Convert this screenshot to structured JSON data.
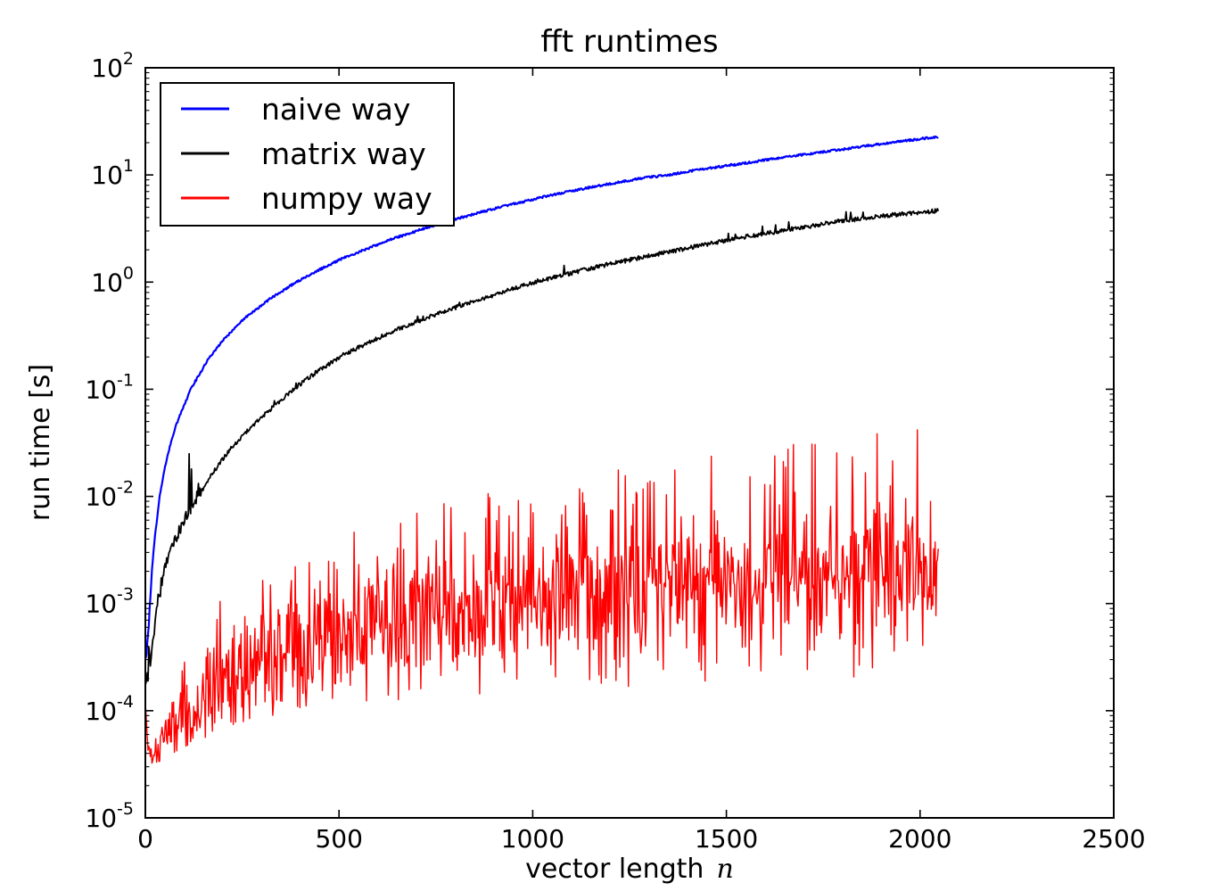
{
  "title": "fft runtimes",
  "chart_data": {
    "type": "line",
    "title": "fft runtimes",
    "xlabel": "vector length",
    "xlabel_math_var": "n",
    "ylabel": "run time [s]",
    "background_color": "#ffffff",
    "axes_edge_color": "#000000",
    "grid": false,
    "x_axis": {
      "scale": "linear",
      "min": 0,
      "max": 2500,
      "tick_labels": [
        "0",
        "500",
        "1000",
        "1500",
        "2000",
        "2500"
      ],
      "tick_values": [
        0,
        500,
        1000,
        1500,
        2000,
        2500
      ]
    },
    "y_axis": {
      "scale": "log",
      "min": 1e-05,
      "max": 100,
      "tick_exponents": [
        2,
        1,
        0,
        -1,
        -2,
        -3,
        -4,
        -5
      ],
      "tick_base": "10",
      "minor_ticks": true
    },
    "legend": {
      "position": "upper left",
      "entries": [
        {
          "label": "naive way",
          "color": "#0000ff"
        },
        {
          "label": "matrix way",
          "color": "#000000"
        },
        {
          "label": "numpy way",
          "color": "#ff0000"
        }
      ]
    },
    "series": [
      {
        "name": "naive way",
        "color": "#0000ff",
        "style": "smooth-line",
        "n_start": 1,
        "n_end": 2048,
        "trend_points": [
          [
            1,
            0.0003
          ],
          [
            8,
            0.0006
          ],
          [
            16,
            0.0019
          ],
          [
            24,
            0.004
          ],
          [
            37,
            0.01
          ],
          [
            48,
            0.017
          ],
          [
            64,
            0.03
          ],
          [
            80,
            0.047
          ],
          [
            117,
            0.1
          ],
          [
            160,
            0.185
          ],
          [
            200,
            0.285
          ],
          [
            256,
            0.46
          ],
          [
            320,
            0.69
          ],
          [
            390,
            1.0
          ],
          [
            448,
            1.3
          ],
          [
            512,
            1.68
          ],
          [
            640,
            2.55
          ],
          [
            768,
            3.6
          ],
          [
            896,
            4.8
          ],
          [
            1024,
            6.2
          ],
          [
            1152,
            7.7
          ],
          [
            1280,
            9.3
          ],
          [
            1350,
            10.0
          ],
          [
            1408,
            10.9
          ],
          [
            1536,
            12.7
          ],
          [
            1664,
            14.9
          ],
          [
            1792,
            17.2
          ],
          [
            1920,
            19.9
          ],
          [
            2048,
            22.8
          ]
        ]
      },
      {
        "name": "matrix way",
        "color": "#000000",
        "style": "noisy-line",
        "n_start": 1,
        "n_end": 2048,
        "trend_points": [
          [
            1,
            0.00023
          ],
          [
            8,
            0.00027
          ],
          [
            16,
            0.0004
          ],
          [
            24,
            0.00065
          ],
          [
            30,
            0.001
          ],
          [
            48,
            0.002
          ],
          [
            64,
            0.003
          ],
          [
            96,
            0.0056
          ],
          [
            133,
            0.01
          ],
          [
            176,
            0.017
          ],
          [
            224,
            0.029
          ],
          [
            288,
            0.05
          ],
          [
            382,
            0.1
          ],
          [
            448,
            0.15
          ],
          [
            512,
            0.21
          ],
          [
            640,
            0.35
          ],
          [
            768,
            0.53
          ],
          [
            896,
            0.75
          ],
          [
            1005,
            1.0
          ],
          [
            1152,
            1.35
          ],
          [
            1280,
            1.7
          ],
          [
            1408,
            2.1
          ],
          [
            1536,
            2.6
          ],
          [
            1664,
            3.1
          ],
          [
            1792,
            3.7
          ],
          [
            1920,
            4.2
          ],
          [
            2048,
            4.64
          ]
        ],
        "spikes": [
          [
            113,
            0.025
          ],
          [
            119,
            0.018
          ],
          [
            1450,
            2.45
          ]
        ]
      },
      {
        "name": "numpy way",
        "color": "#ff0000",
        "style": "noisy-band",
        "n_start": 1,
        "n_end": 2048,
        "core_points": [
          [
            1,
            0.000105
          ],
          [
            6,
            5e-05
          ],
          [
            14,
            3.6e-05
          ],
          [
            40,
            4.2e-05
          ],
          [
            80,
            6.5e-05
          ],
          [
            130,
            0.0001
          ],
          [
            200,
            0.00016
          ],
          [
            300,
            0.00026
          ],
          [
            450,
            0.00042
          ],
          [
            600,
            0.00058
          ],
          [
            800,
            0.00075
          ],
          [
            1000,
            0.00095
          ],
          [
            1300,
            0.0012
          ],
          [
            1600,
            0.0015
          ],
          [
            1900,
            0.0017
          ],
          [
            2048,
            0.0018
          ]
        ],
        "upper_envelope_points": [
          [
            1,
            0.00013
          ],
          [
            30,
            0.00011
          ],
          [
            60,
            0.00022
          ],
          [
            100,
            0.00042
          ],
          [
            150,
            0.00075
          ],
          [
            200,
            0.0012
          ],
          [
            300,
            0.0022
          ],
          [
            400,
            0.0034
          ],
          [
            500,
            0.005
          ],
          [
            650,
            0.007
          ],
          [
            800,
            0.01
          ],
          [
            1000,
            0.014
          ],
          [
            1200,
            0.019
          ],
          [
            1400,
            0.025
          ],
          [
            1600,
            0.03
          ],
          [
            1800,
            0.036
          ],
          [
            2048,
            0.044
          ]
        ],
        "lower_envelope_points": [
          [
            1,
            9e-05
          ],
          [
            6,
            4.2e-05
          ],
          [
            14,
            3.2e-05
          ],
          [
            40,
            3.4e-05
          ],
          [
            80,
            4.2e-05
          ],
          [
            130,
            5.2e-05
          ],
          [
            200,
            6.5e-05
          ],
          [
            300,
            8.5e-05
          ],
          [
            450,
            0.000105
          ],
          [
            600,
            0.00012
          ],
          [
            800,
            0.000135
          ],
          [
            1000,
            0.00015
          ],
          [
            1300,
            0.00017
          ],
          [
            1600,
            0.00019
          ],
          [
            1900,
            0.00021
          ],
          [
            2048,
            0.00022
          ]
        ]
      }
    ]
  }
}
